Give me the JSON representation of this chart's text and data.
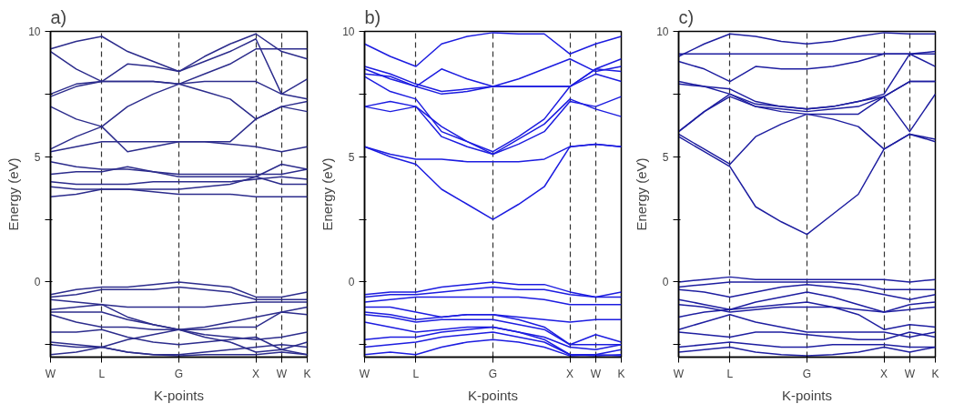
{
  "chart_data": [
    {
      "type": "line",
      "title": "a)",
      "xlabel": "K-points",
      "ylabel": "Energy (eV)",
      "ylim": [
        -3,
        10
      ],
      "categories": [
        "W",
        null,
        "L",
        null,
        null,
        "G",
        null,
        null,
        "X",
        "W",
        "K"
      ],
      "yticks": [
        {
          "value": -2.5,
          "label": null
        },
        0,
        {
          "value": 2.5,
          "label": null
        },
        5,
        {
          "value": 7.5,
          "label": null
        },
        10
      ],
      "grid": "x",
      "marker": "none",
      "line_style": "solid",
      "series": [
        {
          "color": "#2c2c8c",
          "values": [
            3.4,
            3.5,
            3.7,
            3.7,
            3.6,
            3.5,
            3.5,
            3.5,
            3.4,
            3.4,
            3.4
          ]
        },
        {
          "color": "#2c2c8c",
          "values": [
            3.8,
            3.7,
            3.7,
            3.7,
            3.7,
            3.7,
            3.8,
            3.9,
            4.2,
            3.9,
            3.9
          ]
        },
        {
          "color": "#2c2c8c",
          "values": [
            4.0,
            3.9,
            3.9,
            3.9,
            4.0,
            4.0,
            4.0,
            4.0,
            4.1,
            4.2,
            4.1
          ]
        },
        {
          "color": "#2c2c8c",
          "values": [
            4.3,
            4.4,
            4.4,
            4.6,
            4.4,
            4.2,
            4.2,
            4.2,
            4.2,
            4.7,
            4.5
          ]
        },
        {
          "color": "#2c2c8c",
          "values": [
            4.8,
            4.6,
            4.5,
            4.5,
            4.4,
            4.3,
            4.3,
            4.3,
            4.3,
            4.3,
            4.5
          ]
        },
        {
          "color": "#2c2c8c",
          "values": [
            5.2,
            5.4,
            5.6,
            5.6,
            5.6,
            5.6,
            5.6,
            5.5,
            5.4,
            5.2,
            5.4
          ]
        },
        {
          "color": "#2c2c8c",
          "values": [
            5.3,
            5.8,
            6.2,
            5.2,
            5.4,
            5.6,
            5.6,
            5.6,
            6.5,
            7.0,
            6.8
          ]
        },
        {
          "color": "#2c2c8c",
          "values": [
            7.0,
            6.5,
            6.2,
            7.0,
            7.5,
            7.9,
            7.6,
            7.3,
            6.5,
            7.0,
            7.2
          ]
        },
        {
          "color": "#2c2c8c",
          "values": [
            7.5,
            7.9,
            8.0,
            8.0,
            8.0,
            7.9,
            8.0,
            8.0,
            8.0,
            7.5,
            7.3
          ]
        },
        {
          "color": "#2c2c8c",
          "values": [
            7.4,
            7.8,
            8.0,
            8.0,
            8.0,
            7.9,
            8.3,
            8.7,
            9.3,
            9.3,
            9.3
          ]
        },
        {
          "color": "#2c2c8c",
          "values": [
            9.2,
            8.5,
            8.0,
            8.7,
            8.6,
            8.4,
            8.8,
            9.2,
            9.7,
            7.5,
            8.1
          ]
        },
        {
          "color": "#2c2c8c",
          "values": [
            9.3,
            9.6,
            9.8,
            9.2,
            8.8,
            8.4,
            9.0,
            9.5,
            9.9,
            9.2,
            8.9
          ]
        },
        {
          "color": "#2c2c8c",
          "values": [
            -0.5,
            -0.3,
            -0.2,
            -0.2,
            -0.1,
            0.0,
            -0.1,
            -0.2,
            -0.6,
            -0.6,
            -0.4
          ]
        },
        {
          "color": "#2c2c8c",
          "values": [
            -0.6,
            -0.5,
            -0.3,
            -0.3,
            -0.3,
            -0.2,
            -0.3,
            -0.4,
            -0.7,
            -0.7,
            -0.7
          ]
        },
        {
          "color": "#2c2c8c",
          "values": [
            -0.7,
            -0.8,
            -0.9,
            -1.0,
            -1.0,
            -1.0,
            -1.0,
            -0.9,
            -0.8,
            -0.8,
            -0.8
          ]
        },
        {
          "color": "#2c2c8c",
          "values": [
            -1.1,
            -1.0,
            -0.9,
            -1.4,
            -1.7,
            -1.9,
            -1.8,
            -1.6,
            -1.4,
            -1.2,
            -1.0
          ]
        },
        {
          "color": "#2c2c8c",
          "values": [
            -1.2,
            -1.2,
            -1.2,
            -1.5,
            -1.7,
            -1.9,
            -1.9,
            -1.8,
            -1.8,
            -1.2,
            -1.3
          ]
        },
        {
          "color": "#2c2c8c",
          "values": [
            -1.3,
            -1.6,
            -1.8,
            -1.8,
            -1.9,
            -1.9,
            -2.1,
            -2.2,
            -2.3,
            -2.2,
            -2.0
          ]
        },
        {
          "color": "#2c2c8c",
          "values": [
            -2.0,
            -2.0,
            -1.9,
            -2.2,
            -2.4,
            -2.5,
            -2.4,
            -2.3,
            -2.2,
            -2.7,
            -2.4
          ]
        },
        {
          "color": "#2c2c8c",
          "values": [
            -2.4,
            -2.5,
            -2.6,
            -2.3,
            -2.1,
            -1.9,
            -2.2,
            -2.4,
            -2.8,
            -2.7,
            -2.9
          ]
        },
        {
          "color": "#2c2c8c",
          "values": [
            -2.5,
            -2.6,
            -2.6,
            -2.8,
            -2.9,
            -2.9,
            -2.8,
            -2.7,
            -2.6,
            -2.5,
            -2.6
          ]
        },
        {
          "color": "#2c2c8c",
          "values": [
            -2.9,
            -2.8,
            -2.6,
            -2.8,
            -2.9,
            -2.95,
            -2.9,
            -2.9,
            -2.9,
            -2.8,
            -2.9
          ]
        }
      ]
    },
    {
      "type": "line",
      "title": "b)",
      "xlabel": "K-points",
      "ylabel": "Energy (eV)",
      "ylim": [
        -3,
        10
      ],
      "categories": [
        "W",
        null,
        "L",
        null,
        null,
        "G",
        null,
        null,
        "X",
        "W",
        "K"
      ],
      "yticks": [
        {
          "value": -2.5,
          "label": null
        },
        0,
        {
          "value": 2.5,
          "label": null
        },
        5,
        {
          "value": 7.5,
          "label": null
        },
        10
      ],
      "grid": "x",
      "marker": "none",
      "line_style": "solid",
      "series": [
        {
          "color": "#1c1ce0",
          "values": [
            5.4,
            5.0,
            4.7,
            3.7,
            3.1,
            2.5,
            3.1,
            3.8,
            5.4,
            5.5,
            5.4
          ]
        },
        {
          "color": "#1c1ce0",
          "values": [
            5.4,
            5.1,
            4.9,
            4.9,
            4.8,
            4.8,
            4.8,
            4.9,
            5.4,
            5.5,
            5.4
          ]
        },
        {
          "color": "#1c1ce0",
          "values": [
            7.0,
            7.2,
            7.0,
            6.2,
            5.6,
            5.1,
            5.7,
            6.3,
            7.3,
            6.9,
            6.6
          ]
        },
        {
          "color": "#1c1ce0",
          "values": [
            7.0,
            6.8,
            7.0,
            5.8,
            5.4,
            5.1,
            5.5,
            6.0,
            7.2,
            7.0,
            7.4
          ]
        },
        {
          "color": "#1c1ce0",
          "values": [
            8.2,
            7.6,
            7.3,
            6.0,
            5.6,
            5.2,
            5.8,
            6.5,
            7.8,
            8.3,
            8.0
          ]
        },
        {
          "color": "#1c1ce0",
          "values": [
            8.5,
            8.1,
            7.8,
            7.5,
            7.6,
            7.8,
            7.8,
            7.8,
            7.8,
            8.5,
            8.4
          ]
        },
        {
          "color": "#1c1ce0",
          "values": [
            8.3,
            8.2,
            7.8,
            8.5,
            8.1,
            7.8,
            8.1,
            8.5,
            8.9,
            8.4,
            8.6
          ]
        },
        {
          "color": "#1c1ce0",
          "values": [
            9.5,
            9.0,
            8.6,
            9.5,
            9.8,
            9.95,
            9.9,
            9.9,
            9.1,
            9.5,
            9.8
          ]
        },
        {
          "color": "#1c1ce0",
          "values": [
            8.6,
            8.3,
            7.9,
            7.6,
            7.7,
            7.8,
            7.8,
            7.8,
            7.8,
            8.5,
            8.9
          ]
        },
        {
          "color": "#1c1ce0",
          "values": [
            -0.5,
            -0.4,
            -0.4,
            -0.2,
            -0.1,
            0.0,
            -0.1,
            -0.1,
            -0.4,
            -0.6,
            -0.4
          ]
        },
        {
          "color": "#1c1ce0",
          "values": [
            -0.6,
            -0.5,
            -0.5,
            -0.4,
            -0.3,
            -0.2,
            -0.3,
            -0.3,
            -0.5,
            -0.6,
            -0.6
          ]
        },
        {
          "color": "#1c1ce0",
          "values": [
            -0.8,
            -0.7,
            -0.6,
            -0.6,
            -0.6,
            -0.6,
            -0.6,
            -0.7,
            -0.9,
            -0.9,
            -0.9
          ]
        },
        {
          "color": "#1c1ce0",
          "values": [
            -1.0,
            -1.0,
            -1.2,
            -1.4,
            -1.3,
            -1.3,
            -1.4,
            -1.5,
            -1.6,
            -1.5,
            -1.5
          ]
        },
        {
          "color": "#1c1ce0",
          "values": [
            -1.2,
            -1.3,
            -1.5,
            -1.4,
            -1.3,
            -1.3,
            -1.5,
            -1.8,
            -2.5,
            -2.1,
            -2.4
          ]
        },
        {
          "color": "#1c1ce0",
          "values": [
            -1.3,
            -1.4,
            -1.6,
            -1.5,
            -1.5,
            -1.5,
            -1.7,
            -1.9,
            -2.5,
            -2.5,
            -2.5
          ]
        },
        {
          "color": "#1c1ce0",
          "values": [
            -1.6,
            -1.8,
            -2.0,
            -1.9,
            -1.8,
            -1.8,
            -2.0,
            -2.2,
            -2.6,
            -2.7,
            -2.5
          ]
        },
        {
          "color": "#1c1ce0",
          "values": [
            -2.3,
            -2.2,
            -2.2,
            -2.0,
            -1.9,
            -1.8,
            -2.0,
            -2.3,
            -2.9,
            -2.9,
            -2.7
          ]
        },
        {
          "color": "#1c1ce0",
          "values": [
            -2.6,
            -2.5,
            -2.4,
            -2.2,
            -2.1,
            -2.0,
            -2.2,
            -2.4,
            -2.9,
            -2.95,
            -2.9
          ]
        },
        {
          "color": "#1c1ce0",
          "values": [
            -2.9,
            -2.8,
            -2.9,
            -2.6,
            -2.4,
            -2.3,
            -2.4,
            -2.6,
            -2.95,
            -2.9,
            -2.95
          ]
        }
      ]
    },
    {
      "type": "line",
      "title": "c)",
      "xlabel": "K-points",
      "ylabel": "Energy (eV)",
      "ylim": [
        -3,
        10
      ],
      "categories": [
        "W",
        null,
        "L",
        null,
        null,
        "G",
        null,
        null,
        "X",
        "W",
        "K"
      ],
      "yticks": [
        {
          "value": -2.5,
          "label": null
        },
        0,
        {
          "value": 2.5,
          "label": null
        },
        5,
        {
          "value": 7.5,
          "label": null
        },
        10
      ],
      "grid": "x",
      "marker": "none",
      "line_style": "solid",
      "series": [
        {
          "color": "#1e1ea0",
          "values": [
            5.8,
            5.2,
            4.6,
            3.0,
            2.4,
            1.9,
            2.7,
            3.5,
            5.3,
            5.9,
            5.6
          ]
        },
        {
          "color": "#1e1ea0",
          "values": [
            5.9,
            5.3,
            4.7,
            5.8,
            6.3,
            6.7,
            6.5,
            6.2,
            5.3,
            5.9,
            5.7
          ]
        },
        {
          "color": "#1e1ea0",
          "values": [
            6.0,
            6.8,
            7.5,
            7.0,
            6.8,
            6.7,
            6.7,
            6.7,
            7.4,
            6.0,
            7.5
          ]
        },
        {
          "color": "#1e1ea0",
          "values": [
            6.0,
            6.8,
            7.4,
            7.0,
            6.9,
            6.8,
            6.9,
            7.0,
            7.4,
            8.0,
            8.0
          ]
        },
        {
          "color": "#1e1ea0",
          "values": [
            7.9,
            7.8,
            7.5,
            7.1,
            7.0,
            6.9,
            7.0,
            7.2,
            7.4,
            8.0,
            8.0
          ]
        },
        {
          "color": "#1e1ea0",
          "values": [
            8.0,
            7.8,
            7.7,
            7.2,
            7.0,
            6.9,
            7.0,
            7.2,
            7.5,
            9.1,
            8.6
          ]
        },
        {
          "color": "#1e1ea0",
          "values": [
            8.8,
            8.5,
            8.0,
            8.6,
            8.5,
            8.5,
            8.6,
            8.8,
            9.1,
            9.1,
            9.1
          ]
        },
        {
          "color": "#1e1ea0",
          "values": [
            9.1,
            9.1,
            9.1,
            9.1,
            9.1,
            9.1,
            9.1,
            9.1,
            9.1,
            9.1,
            9.2
          ]
        },
        {
          "color": "#1e1ea0",
          "values": [
            9.0,
            9.5,
            9.9,
            9.8,
            9.6,
            9.5,
            9.6,
            9.8,
            9.95,
            9.9,
            9.9
          ]
        },
        {
          "color": "#1e1ea0",
          "values": [
            0.0,
            0.1,
            0.2,
            0.1,
            0.1,
            0.1,
            0.1,
            0.1,
            0.1,
            0.0,
            0.1
          ]
        },
        {
          "color": "#1e1ea0",
          "values": [
            -0.2,
            -0.1,
            0.0,
            0.0,
            0.0,
            0.0,
            0.0,
            -0.1,
            -0.3,
            -0.3,
            -0.3
          ]
        },
        {
          "color": "#1e1ea0",
          "values": [
            -0.3,
            -0.4,
            -0.6,
            -0.4,
            -0.2,
            -0.1,
            -0.2,
            -0.3,
            -0.5,
            -0.7,
            -0.5
          ]
        },
        {
          "color": "#1e1ea0",
          "values": [
            -0.7,
            -0.9,
            -1.1,
            -0.8,
            -0.6,
            -0.4,
            -0.6,
            -0.9,
            -1.2,
            -0.9,
            -0.8
          ]
        },
        {
          "color": "#1e1ea0",
          "values": [
            -0.9,
            -1.0,
            -1.2,
            -1.1,
            -1.0,
            -1.0,
            -1.0,
            -1.1,
            -1.2,
            -1.1,
            -1.0
          ]
        },
        {
          "color": "#1e1ea0",
          "values": [
            -1.4,
            -1.2,
            -1.1,
            -1.0,
            -0.9,
            -0.8,
            -1.0,
            -1.3,
            -1.9,
            -1.7,
            -1.8
          ]
        },
        {
          "color": "#1e1ea0",
          "values": [
            -1.9,
            -1.6,
            -1.3,
            -1.6,
            -1.8,
            -2.0,
            -2.0,
            -2.0,
            -2.0,
            -2.2,
            -2.0
          ]
        },
        {
          "color": "#1e1ea0",
          "values": [
            -2.0,
            -2.1,
            -2.2,
            -2.0,
            -2.0,
            -2.1,
            -2.2,
            -2.3,
            -2.3,
            -2.0,
            -2.2
          ]
        },
        {
          "color": "#1e1ea0",
          "values": [
            -2.6,
            -2.5,
            -2.4,
            -2.5,
            -2.6,
            -2.6,
            -2.5,
            -2.5,
            -2.5,
            -2.6,
            -2.6
          ]
        },
        {
          "color": "#1e1ea0",
          "values": [
            -2.8,
            -2.7,
            -2.6,
            -2.8,
            -2.9,
            -2.95,
            -2.9,
            -2.8,
            -2.6,
            -2.8,
            -2.6
          ]
        }
      ]
    }
  ]
}
